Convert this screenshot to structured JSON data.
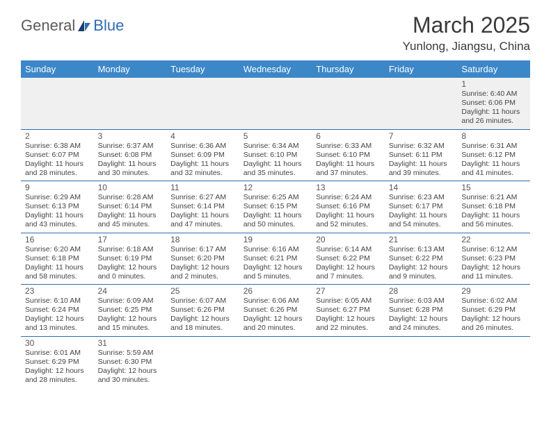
{
  "brand": {
    "part1": "General",
    "part2": "Blue"
  },
  "title": "March 2025",
  "location": "Yunlong, Jiangsu, China",
  "colors": {
    "header_bg": "#3c87c8",
    "header_text": "#ffffff",
    "rule": "#2d6bb5",
    "body_text": "#444444",
    "muted_bg": "#f0f0f0",
    "logo_gray": "#5a5a5a",
    "logo_blue": "#2d6bb5"
  },
  "weekdays": [
    "Sunday",
    "Monday",
    "Tuesday",
    "Wednesday",
    "Thursday",
    "Friday",
    "Saturday"
  ],
  "weeks": [
    [
      null,
      null,
      null,
      null,
      null,
      null,
      {
        "n": "1",
        "sr": "6:40 AM",
        "ss": "6:06 PM",
        "dl": "11 hours and 26 minutes."
      }
    ],
    [
      {
        "n": "2",
        "sr": "6:38 AM",
        "ss": "6:07 PM",
        "dl": "11 hours and 28 minutes."
      },
      {
        "n": "3",
        "sr": "6:37 AM",
        "ss": "6:08 PM",
        "dl": "11 hours and 30 minutes."
      },
      {
        "n": "4",
        "sr": "6:36 AM",
        "ss": "6:09 PM",
        "dl": "11 hours and 32 minutes."
      },
      {
        "n": "5",
        "sr": "6:34 AM",
        "ss": "6:10 PM",
        "dl": "11 hours and 35 minutes."
      },
      {
        "n": "6",
        "sr": "6:33 AM",
        "ss": "6:10 PM",
        "dl": "11 hours and 37 minutes."
      },
      {
        "n": "7",
        "sr": "6:32 AM",
        "ss": "6:11 PM",
        "dl": "11 hours and 39 minutes."
      },
      {
        "n": "8",
        "sr": "6:31 AM",
        "ss": "6:12 PM",
        "dl": "11 hours and 41 minutes."
      }
    ],
    [
      {
        "n": "9",
        "sr": "6:29 AM",
        "ss": "6:13 PM",
        "dl": "11 hours and 43 minutes."
      },
      {
        "n": "10",
        "sr": "6:28 AM",
        "ss": "6:14 PM",
        "dl": "11 hours and 45 minutes."
      },
      {
        "n": "11",
        "sr": "6:27 AM",
        "ss": "6:14 PM",
        "dl": "11 hours and 47 minutes."
      },
      {
        "n": "12",
        "sr": "6:25 AM",
        "ss": "6:15 PM",
        "dl": "11 hours and 50 minutes."
      },
      {
        "n": "13",
        "sr": "6:24 AM",
        "ss": "6:16 PM",
        "dl": "11 hours and 52 minutes."
      },
      {
        "n": "14",
        "sr": "6:23 AM",
        "ss": "6:17 PM",
        "dl": "11 hours and 54 minutes."
      },
      {
        "n": "15",
        "sr": "6:21 AM",
        "ss": "6:18 PM",
        "dl": "11 hours and 56 minutes."
      }
    ],
    [
      {
        "n": "16",
        "sr": "6:20 AM",
        "ss": "6:18 PM",
        "dl": "11 hours and 58 minutes."
      },
      {
        "n": "17",
        "sr": "6:18 AM",
        "ss": "6:19 PM",
        "dl": "12 hours and 0 minutes."
      },
      {
        "n": "18",
        "sr": "6:17 AM",
        "ss": "6:20 PM",
        "dl": "12 hours and 2 minutes."
      },
      {
        "n": "19",
        "sr": "6:16 AM",
        "ss": "6:21 PM",
        "dl": "12 hours and 5 minutes."
      },
      {
        "n": "20",
        "sr": "6:14 AM",
        "ss": "6:22 PM",
        "dl": "12 hours and 7 minutes."
      },
      {
        "n": "21",
        "sr": "6:13 AM",
        "ss": "6:22 PM",
        "dl": "12 hours and 9 minutes."
      },
      {
        "n": "22",
        "sr": "6:12 AM",
        "ss": "6:23 PM",
        "dl": "12 hours and 11 minutes."
      }
    ],
    [
      {
        "n": "23",
        "sr": "6:10 AM",
        "ss": "6:24 PM",
        "dl": "12 hours and 13 minutes."
      },
      {
        "n": "24",
        "sr": "6:09 AM",
        "ss": "6:25 PM",
        "dl": "12 hours and 15 minutes."
      },
      {
        "n": "25",
        "sr": "6:07 AM",
        "ss": "6:26 PM",
        "dl": "12 hours and 18 minutes."
      },
      {
        "n": "26",
        "sr": "6:06 AM",
        "ss": "6:26 PM",
        "dl": "12 hours and 20 minutes."
      },
      {
        "n": "27",
        "sr": "6:05 AM",
        "ss": "6:27 PM",
        "dl": "12 hours and 22 minutes."
      },
      {
        "n": "28",
        "sr": "6:03 AM",
        "ss": "6:28 PM",
        "dl": "12 hours and 24 minutes."
      },
      {
        "n": "29",
        "sr": "6:02 AM",
        "ss": "6:29 PM",
        "dl": "12 hours and 26 minutes."
      }
    ],
    [
      {
        "n": "30",
        "sr": "6:01 AM",
        "ss": "6:29 PM",
        "dl": "12 hours and 28 minutes."
      },
      {
        "n": "31",
        "sr": "5:59 AM",
        "ss": "6:30 PM",
        "dl": "12 hours and 30 minutes."
      },
      null,
      null,
      null,
      null,
      null
    ]
  ],
  "labels": {
    "sunrise": "Sunrise:",
    "sunset": "Sunset:",
    "daylight": "Daylight:"
  }
}
